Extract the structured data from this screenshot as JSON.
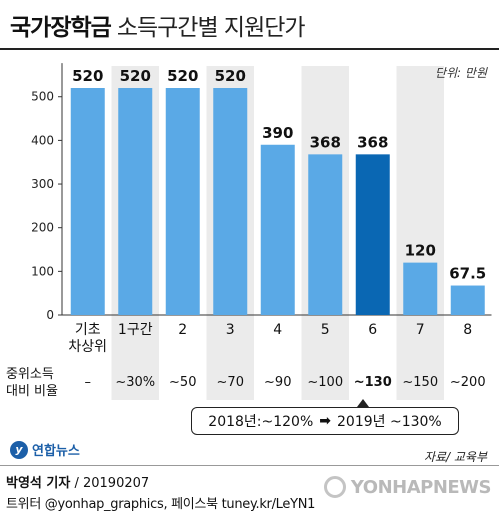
{
  "header": {
    "title_bold": "국가장학금",
    "title_light": "소득구간별 지원단가"
  },
  "unit_label": "단위: 만원",
  "chart_data": {
    "type": "bar",
    "categories": [
      [
        "기초",
        "차상위"
      ],
      [
        "1구간"
      ],
      [
        "2"
      ],
      [
        "3"
      ],
      [
        "4"
      ],
      [
        "5"
      ],
      [
        "6"
      ],
      [
        "7"
      ],
      [
        "8"
      ]
    ],
    "values": [
      520,
      520,
      520,
      520,
      390,
      368,
      368,
      120,
      67.5
    ],
    "value_labels": [
      "520",
      "520",
      "520",
      "520",
      "390",
      "368",
      "368",
      "120",
      "67.5"
    ],
    "highlight_index": 6,
    "ylim": [
      0,
      600
    ],
    "yticks": [
      0,
      100,
      200,
      300,
      400,
      500
    ],
    "grid": false,
    "alternate_bands": true,
    "colors": {
      "bar": "#5aa9e6",
      "highlight": "#0a67b3",
      "band": "#ebebeb",
      "axis": "#333333"
    }
  },
  "income_ratio": {
    "label": [
      "중위소득",
      "대비 비율"
    ],
    "values": [
      "–",
      "~30%",
      "~50",
      "~70",
      "~90",
      "~100",
      "~130",
      "~150",
      "~200"
    ],
    "highlight_index": 6
  },
  "callout": {
    "from": "2018년:~120%",
    "to": "2019년 ~130%"
  },
  "source": "자료/ 교육부",
  "logo_text": "연합뉴스",
  "credit": {
    "name": "박영석 기자",
    "date": "/ 20190207"
  },
  "social": "트위터 @yonhap_graphics, 페이스북 tuney.kr/LeYN1",
  "watermark": "YONHAPNEWS"
}
